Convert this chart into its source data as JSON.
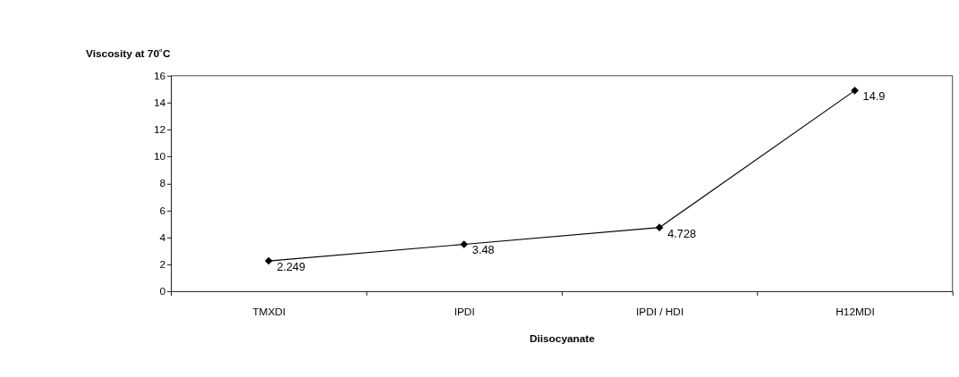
{
  "chart_data": {
    "type": "line",
    "ylabel": "Viscosity at 70˚C",
    "xlabel": "Diisocyanate",
    "categories": [
      "TMXDI",
      "IPDI",
      "IPDI / HDI",
      "H12MDI"
    ],
    "series": [
      {
        "color": "#000000",
        "values": [
          2.249,
          3.48,
          4.728,
          14.9
        ]
      }
    ],
    "ylim": [
      0,
      16
    ],
    "yticks": [
      0,
      2,
      4,
      6,
      8,
      10,
      12,
      14,
      16
    ],
    "data_labels": true,
    "grid": false,
    "legend": false,
    "marker": "diamond",
    "line_style": "solid"
  }
}
